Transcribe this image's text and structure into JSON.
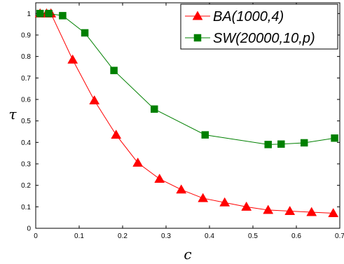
{
  "chart_data": {
    "type": "line",
    "xlabel": "c",
    "ylabel": "τ",
    "xlim": [
      0,
      0.7
    ],
    "ylim": [
      0,
      1.05
    ],
    "xticks": [
      "0",
      "0.1",
      "0.2",
      "0.3",
      "0.4",
      "0.5",
      "0.6",
      "0.7"
    ],
    "yticks": [
      "0",
      "0.1",
      "0.2",
      "0.3",
      "0.4",
      "0.5",
      "0.6",
      "0.7",
      "0.8",
      "0.9",
      "1"
    ],
    "grid": false,
    "legend_position": "top-right",
    "series": [
      {
        "name": "BA(1000,4)",
        "color": "#ff0000",
        "marker": "triangle",
        "x": [
          0.01,
          0.025,
          0.035,
          0.085,
          0.135,
          0.185,
          0.235,
          0.285,
          0.335,
          0.385,
          0.435,
          0.485,
          0.535,
          0.585,
          0.635,
          0.685
        ],
        "y": [
          1.0,
          1.0,
          1.0,
          0.785,
          0.595,
          0.435,
          0.305,
          0.23,
          0.18,
          0.14,
          0.12,
          0.1,
          0.085,
          0.08,
          0.075,
          0.07
        ]
      },
      {
        "name": "SW(20000,10,p)",
        "color": "#008000",
        "marker": "square",
        "x": [
          0.01,
          0.03,
          0.062,
          0.113,
          0.18,
          0.273,
          0.39,
          0.535,
          0.565,
          0.618,
          0.688
        ],
        "y": [
          1.0,
          1.0,
          0.99,
          0.91,
          0.735,
          0.555,
          0.435,
          0.39,
          0.392,
          0.398,
          0.42
        ]
      }
    ]
  }
}
